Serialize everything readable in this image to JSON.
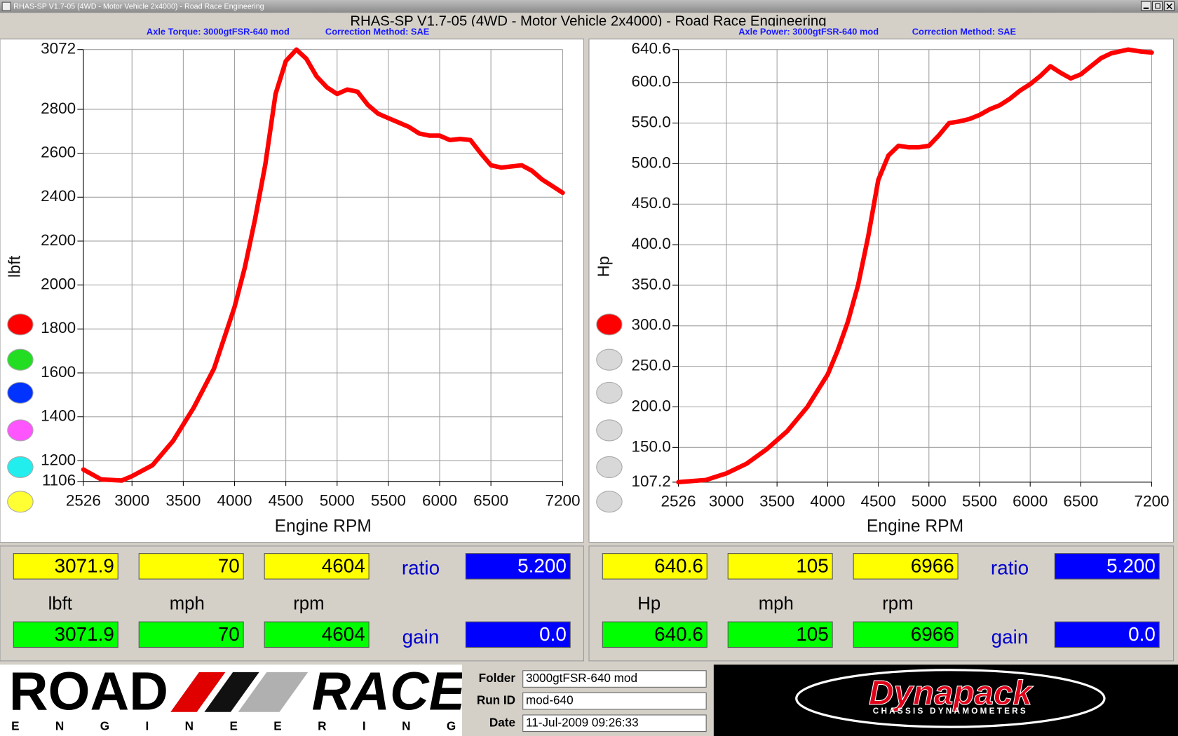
{
  "window": {
    "title": "RHAS-SP V1.7-05  (4WD - Motor Vehicle 2x4000) - Road Race Engineering"
  },
  "header": {
    "title": "RHAS-SP V1.7-05   (4WD - Motor Vehicle 2x4000) - Road Race Engineering"
  },
  "chart_data": [
    {
      "type": "line",
      "subtitle": "Axle Torque: 3000gtFSR-640 mod",
      "note": "Correction Method: SAE",
      "ylabel": "lbft",
      "xlabel": "Engine RPM",
      "x": [
        2526,
        2700,
        2900,
        3000,
        3200,
        3400,
        3600,
        3800,
        4000,
        4100,
        4200,
        4300,
        4400,
        4500,
        4604,
        4700,
        4800,
        4900,
        5000,
        5100,
        5200,
        5300,
        5400,
        5500,
        5600,
        5700,
        5800,
        5900,
        6000,
        6100,
        6200,
        6300,
        6400,
        6500,
        6600,
        6700,
        6800,
        6900,
        7000,
        7100,
        7200
      ],
      "series": [
        {
          "color": "#ff0000",
          "values": [
            1160,
            1115,
            1110,
            1130,
            1180,
            1290,
            1440,
            1620,
            1900,
            2080,
            2300,
            2550,
            2870,
            3020,
            3072,
            3030,
            2950,
            2900,
            2870,
            2890,
            2880,
            2820,
            2780,
            2760,
            2740,
            2720,
            2690,
            2680,
            2680,
            2660,
            2665,
            2660,
            2600,
            2545,
            2535,
            2540,
            2545,
            2520,
            2480,
            2450,
            2420
          ]
        }
      ],
      "xlim": [
        2526,
        7200
      ],
      "xticks": [
        2526,
        3000,
        3500,
        4000,
        4500,
        5000,
        5500,
        6000,
        6500,
        7200
      ],
      "ylim": [
        1106,
        3072
      ],
      "yticks": [
        1106,
        1200,
        1400,
        1600,
        1800,
        2000,
        2200,
        2400,
        2600,
        2800,
        3072
      ],
      "grid": true
    },
    {
      "type": "line",
      "subtitle": "Axle Power: 3000gtFSR-640 mod",
      "note": "Correction Method: SAE",
      "ylabel": "Hp",
      "xlabel": "Engine RPM",
      "x": [
        2526,
        2800,
        3000,
        3200,
        3400,
        3600,
        3800,
        4000,
        4100,
        4200,
        4300,
        4400,
        4500,
        4600,
        4700,
        4800,
        4900,
        5000,
        5100,
        5200,
        5300,
        5400,
        5500,
        5600,
        5700,
        5800,
        5900,
        6000,
        6100,
        6200,
        6300,
        6400,
        6500,
        6600,
        6700,
        6800,
        6966,
        7100,
        7200
      ],
      "series": [
        {
          "color": "#ff0000",
          "values": [
            107.2,
            110,
            118,
            130,
            148,
            170,
            200,
            240,
            270,
            305,
            350,
            410,
            480,
            510,
            522,
            520,
            520,
            522,
            535,
            550,
            552,
            555,
            560,
            567,
            572,
            580,
            590,
            598,
            608,
            620,
            612,
            605,
            610,
            620,
            630,
            636,
            640.6,
            638,
            637
          ]
        }
      ],
      "xlim": [
        2526,
        7200
      ],
      "xticks": [
        2526,
        3000,
        3500,
        4000,
        4500,
        5000,
        5500,
        6000,
        6500,
        7200
      ],
      "ylim": [
        107.2,
        640.6
      ],
      "yticks": [
        107.2,
        {
          "value": 150,
          "label": "150.0"
        },
        {
          "value": 200,
          "label": "200.0"
        },
        {
          "value": 250,
          "label": "250.0"
        },
        {
          "value": 300,
          "label": "300.0"
        },
        {
          "value": 350,
          "label": "350.0"
        },
        {
          "value": 400,
          "label": "400.0"
        },
        {
          "value": 450,
          "label": "450.0"
        },
        {
          "value": 500,
          "label": "500.0"
        },
        {
          "value": 550,
          "label": "550.0"
        },
        {
          "value": 600,
          "label": "600.0"
        },
        640.6
      ],
      "grid": true
    }
  ],
  "readouts": [
    {
      "labels": [
        "lbft",
        "mph",
        "rpm"
      ],
      "top": [
        "3071.9",
        "70",
        "4604"
      ],
      "bottom": [
        "3071.9",
        "70",
        "4604"
      ],
      "ratio_label": "ratio",
      "ratio": "5.200",
      "gain_label": "gain",
      "gain": "0.0"
    },
    {
      "labels": [
        "Hp",
        "mph",
        "rpm"
      ],
      "top": [
        "640.6",
        "105",
        "6966"
      ],
      "bottom": [
        "640.6",
        "105",
        "6966"
      ],
      "ratio_label": "ratio",
      "ratio": "5.200",
      "gain_label": "gain",
      "gain": "0.0"
    }
  ],
  "footer": {
    "logo": {
      "word1": "ROAD",
      "word2": "RACE",
      "sub": "ENGINEERING"
    },
    "fields": [
      {
        "label": "Folder",
        "value": "3000gtFSR-640 mod"
      },
      {
        "label": "Run ID",
        "value": "mod-640"
      },
      {
        "label": "Date",
        "value": "11-Jul-2009  09:26:33"
      }
    ],
    "brand": {
      "name": "Dynapack",
      "sub": "CHASSIS DYNAMOMETERS"
    }
  }
}
